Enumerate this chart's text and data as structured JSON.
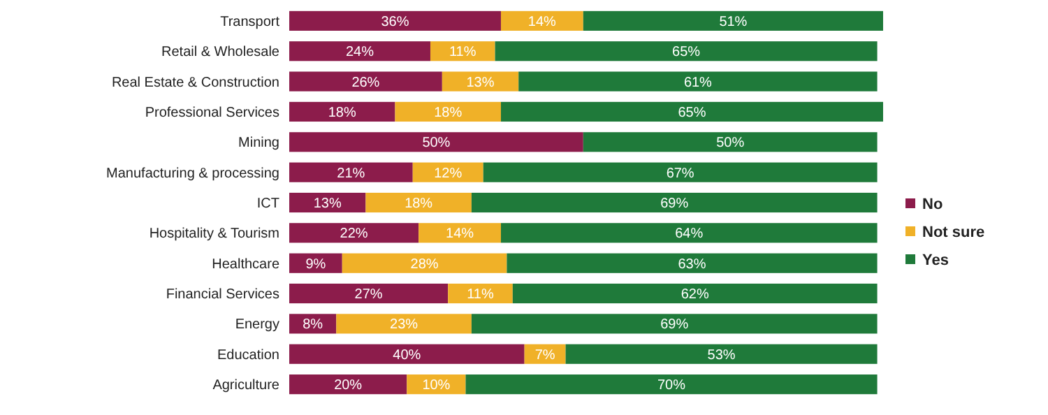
{
  "chart_data": {
    "type": "bar",
    "orientation": "horizontal",
    "stacked": true,
    "legend": "right",
    "categories": [
      "Transport",
      "Retail & Wholesale",
      "Real Estate & Construction",
      "Professional Services",
      "Mining",
      "Manufacturing & processing",
      "ICT",
      "Hospitality & Tourism",
      "Healthcare",
      "Financial Services",
      "Energy",
      "Education",
      "Agriculture"
    ],
    "series": [
      {
        "name": "No",
        "color": "#8c1c4b",
        "values": [
          36,
          24,
          26,
          18,
          50,
          21,
          13,
          22,
          9,
          27,
          8,
          40,
          20
        ],
        "value_labels": [
          "36%",
          "24%",
          "26%",
          "18%",
          "50%",
          "21%",
          "13%",
          "22%",
          "9%",
          "27%",
          "8%",
          "40%",
          "20%"
        ]
      },
      {
        "name": "Not sure",
        "color": "#f0b128",
        "values": [
          14,
          11,
          13,
          18,
          null,
          12,
          18,
          14,
          28,
          11,
          23,
          7,
          10
        ],
        "value_labels": [
          "14%",
          "11%",
          "13%",
          "18%",
          null,
          "12%",
          "18%",
          "14%",
          "28%",
          "11%",
          "23%",
          "7%",
          "10%"
        ]
      },
      {
        "name": "Yes",
        "color": "#1f7a3a",
        "values": [
          51,
          65,
          61,
          65,
          50,
          67,
          69,
          64,
          63,
          62,
          69,
          53,
          70
        ],
        "value_labels": [
          "51%",
          "65%",
          "61%",
          "65%",
          "50%",
          "67%",
          "69%",
          "64%",
          "63%",
          "62%",
          "69%",
          "53%",
          "70%"
        ]
      }
    ]
  }
}
